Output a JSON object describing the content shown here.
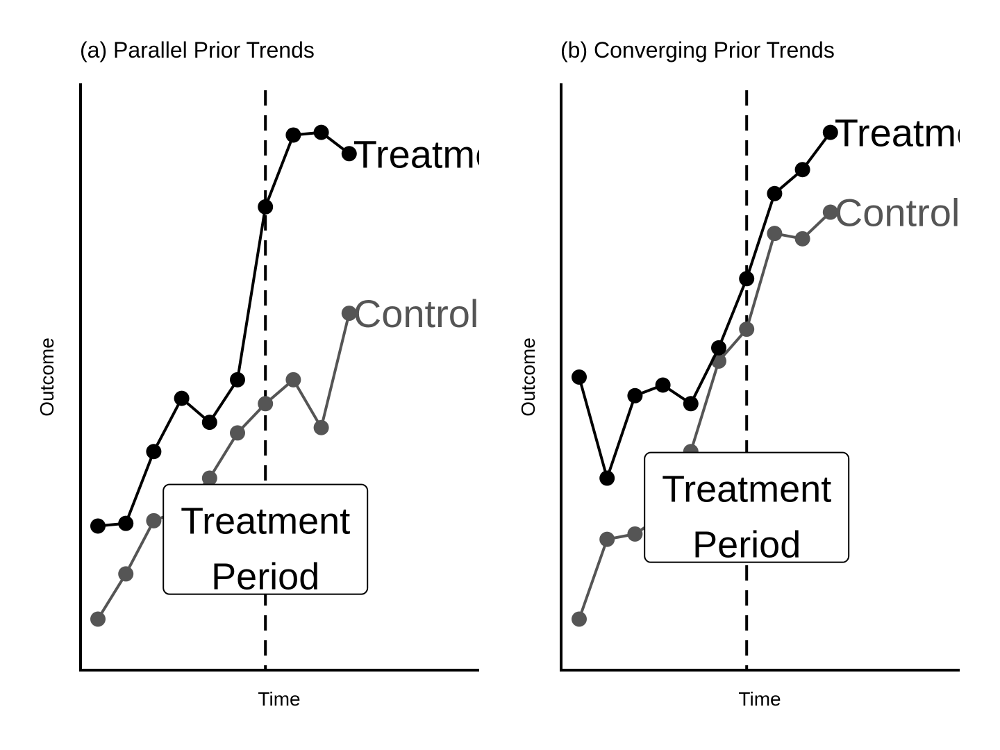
{
  "colors": {
    "treatment": "#000000",
    "control": "#555555",
    "box_fill": "#ffffff",
    "axis": "#000000"
  },
  "chart_data": [
    {
      "type": "line",
      "title": "(a) Parallel Prior Trends",
      "xlabel": "Time",
      "ylabel": "Outcome",
      "x": [
        1,
        2,
        3,
        4,
        5,
        6,
        7,
        8,
        9,
        10
      ],
      "treatment_start": 7,
      "ylim": [
        0,
        100
      ],
      "grid": false,
      "series": [
        {
          "name": "Treatment",
          "color_key": "treatment",
          "values": [
            22,
            22.5,
            36,
            46,
            41.5,
            49.5,
            82,
            95.5,
            96,
            92
          ]
        },
        {
          "name": "Control",
          "color_key": "control",
          "values": [
            4.5,
            13,
            23,
            25,
            31,
            39.5,
            45,
            49.5,
            40.5,
            62
          ]
        }
      ],
      "annotation": {
        "line1": "Treatment",
        "line2": "Period",
        "x": 7,
        "y": 19.5
      }
    },
    {
      "type": "line",
      "title": "(b) Converging Prior Trends",
      "xlabel": "Time",
      "ylabel": "Outcome",
      "x": [
        1,
        2,
        3,
        4,
        5,
        6,
        7,
        8,
        9,
        10
      ],
      "treatment_start": 7,
      "ylim": [
        0,
        100
      ],
      "grid": false,
      "series": [
        {
          "name": "Treatment",
          "color_key": "treatment",
          "values": [
            50,
            31,
            46.5,
            48.5,
            45,
            55.5,
            68.5,
            84.5,
            89,
            96
          ]
        },
        {
          "name": "Control",
          "color_key": "control",
          "values": [
            4.5,
            19.5,
            20.5,
            24,
            36,
            53,
            59,
            77,
            76,
            81
          ]
        }
      ],
      "annotation": {
        "line1": "Treatment",
        "line2": "Period",
        "x": 7,
        "y": 25.5
      }
    }
  ]
}
